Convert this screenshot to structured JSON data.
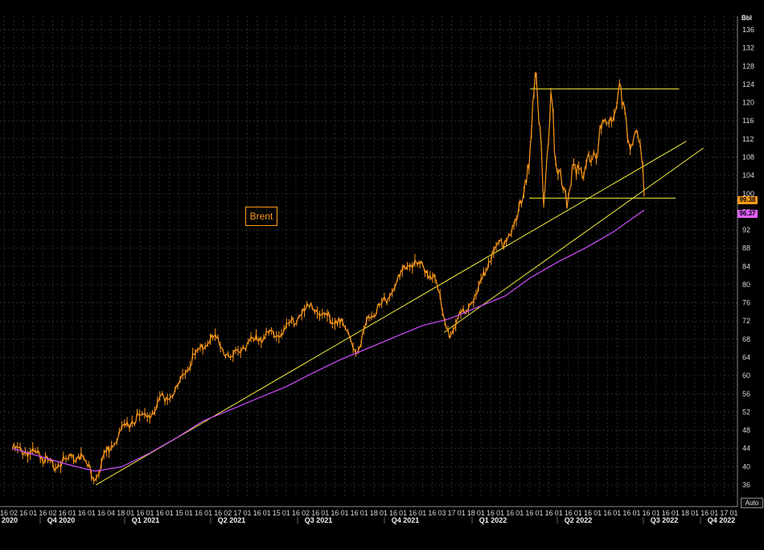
{
  "unit_label": "Bbl",
  "series_label": "Brent",
  "auto_label": "Auto",
  "last_price_tag": "99.38",
  "ma_price_tag": "96.37",
  "colors": {
    "price": "#ff9a1a",
    "moving_average": "#d24bff",
    "trendlines": "#f2ec3c",
    "grid": "#2a2a2a",
    "background": "#000000"
  },
  "axis": {
    "y_ticks": [
      "36",
      "40",
      "44",
      "48",
      "52",
      "56",
      "60",
      "64",
      "68",
      "72",
      "76",
      "80",
      "84",
      "88",
      "92",
      "96",
      "100",
      "104",
      "108",
      "112",
      "116",
      "120",
      "124",
      "128",
      "132",
      "136"
    ],
    "x_day_ticks": [
      "16",
      "02",
      "16",
      "01",
      "16",
      "02",
      "16",
      "01",
      "16",
      "01",
      "16",
      "04",
      "18",
      "01",
      "16",
      "01",
      "16",
      "01",
      "15",
      "01",
      "16",
      "01",
      "16",
      "02",
      "17",
      "01",
      "16",
      "01",
      "15",
      "01",
      "16",
      "02",
      "16",
      "01",
      "16",
      "01",
      "16",
      "01",
      "18",
      "01",
      "16",
      "01",
      "16",
      "01",
      "16",
      "03",
      "17",
      "01",
      "18",
      "01",
      "16",
      "01",
      "16",
      "01",
      "16",
      "01",
      "16",
      "01",
      "16",
      "01",
      "16",
      "01",
      "16",
      "01",
      "16",
      "01",
      "16",
      "01",
      "16",
      "01",
      "18",
      "01",
      "16",
      "01",
      "17",
      "01"
    ],
    "quarter_labels": [
      "2020",
      "Q4 2020",
      "Q1 2021",
      "Q2 2021",
      "Q3 2021",
      "Q4 2021",
      "Q1 2022",
      "Q2 2022",
      "Q3 2022",
      "Q4 2022"
    ]
  },
  "chart_data": {
    "type": "line",
    "title": "",
    "ylabel": "Bbl",
    "ylim": [
      33,
      139
    ],
    "series": [
      {
        "name": "Brent",
        "points": [
          [
            "2020-08-01",
            44.0
          ],
          [
            "2020-09-01",
            42.5
          ],
          [
            "2020-09-15",
            40.0
          ],
          [
            "2020-10-01",
            41.5
          ],
          [
            "2020-10-15",
            42.5
          ],
          [
            "2020-11-01",
            37.5
          ],
          [
            "2020-11-15",
            43.5
          ],
          [
            "2020-12-01",
            48.0
          ],
          [
            "2020-12-15",
            50.5
          ],
          [
            "2021-01-01",
            51.5
          ],
          [
            "2021-01-15",
            55.0
          ],
          [
            "2021-02-01",
            57.0
          ],
          [
            "2021-02-15",
            63.0
          ],
          [
            "2021-03-01",
            66.5
          ],
          [
            "2021-03-15",
            68.5
          ],
          [
            "2021-04-01",
            63.5
          ],
          [
            "2021-04-15",
            66.5
          ],
          [
            "2021-05-01",
            68.0
          ],
          [
            "2021-05-15",
            69.0
          ],
          [
            "2021-06-01",
            70.0
          ],
          [
            "2021-06-15",
            73.0
          ],
          [
            "2021-07-01",
            75.5
          ],
          [
            "2021-07-15",
            73.0
          ],
          [
            "2021-08-01",
            72.0
          ],
          [
            "2021-08-20",
            65.5
          ],
          [
            "2021-09-01",
            72.5
          ],
          [
            "2021-09-15",
            75.0
          ],
          [
            "2021-10-01",
            79.5
          ],
          [
            "2021-10-15",
            84.5
          ],
          [
            "2021-11-01",
            84.0
          ],
          [
            "2021-11-15",
            81.0
          ],
          [
            "2021-11-26",
            72.5
          ],
          [
            "2021-12-01",
            69.0
          ],
          [
            "2021-12-15",
            74.0
          ],
          [
            "2022-01-01",
            78.0
          ],
          [
            "2022-01-15",
            86.0
          ],
          [
            "2022-02-01",
            90.0
          ],
          [
            "2022-02-15",
            94.0
          ],
          [
            "2022-03-01",
            110.0
          ],
          [
            "2022-03-08",
            128.0
          ],
          [
            "2022-03-16",
            98.0
          ],
          [
            "2022-03-24",
            120.0
          ],
          [
            "2022-04-01",
            104.0
          ],
          [
            "2022-04-11",
            98.5
          ],
          [
            "2022-04-20",
            107.0
          ],
          [
            "2022-05-01",
            105.0
          ],
          [
            "2022-05-15",
            111.0
          ],
          [
            "2022-06-01",
            118.0
          ],
          [
            "2022-06-10",
            123.5
          ],
          [
            "2022-06-22",
            110.0
          ],
          [
            "2022-06-30",
            114.0
          ],
          [
            "2022-07-06",
            99.38
          ]
        ]
      },
      {
        "name": "MA",
        "points": [
          [
            "2020-08-01",
            44.0
          ],
          [
            "2020-10-01",
            40.5
          ],
          [
            "2020-11-01",
            39.0
          ],
          [
            "2020-12-01",
            40.0
          ],
          [
            "2021-01-01",
            43.0
          ],
          [
            "2021-02-01",
            46.5
          ],
          [
            "2021-03-01",
            50.0
          ],
          [
            "2021-04-01",
            52.5
          ],
          [
            "2021-05-01",
            55.0
          ],
          [
            "2021-06-01",
            57.5
          ],
          [
            "2021-07-01",
            60.5
          ],
          [
            "2021-08-01",
            63.5
          ],
          [
            "2021-09-01",
            66.0
          ],
          [
            "2021-10-01",
            68.5
          ],
          [
            "2021-11-01",
            71.0
          ],
          [
            "2021-12-01",
            72.5
          ],
          [
            "2022-01-01",
            75.0
          ],
          [
            "2022-02-01",
            77.5
          ],
          [
            "2022-03-01",
            81.5
          ],
          [
            "2022-04-01",
            85.0
          ],
          [
            "2022-05-01",
            88.0
          ],
          [
            "2022-06-01",
            91.5
          ],
          [
            "2022-07-06",
            96.37
          ]
        ]
      }
    ],
    "annotations": {
      "resistance": 123.0,
      "support": 99.0,
      "trendline_a": [
        [
          "2020-11-02",
          36.0
        ],
        [
          "2022-08-22",
          111.5
        ]
      ],
      "trendline_b": [
        [
          "2021-11-25",
          69.5
        ],
        [
          "2022-09-10",
          110.0
        ]
      ]
    }
  }
}
